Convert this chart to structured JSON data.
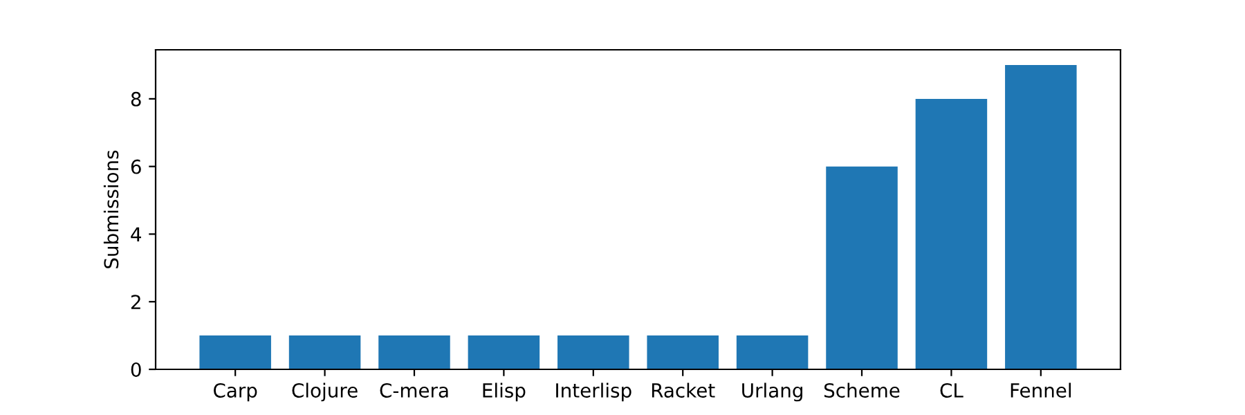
{
  "chart_data": {
    "type": "bar",
    "ylabel": "Submissions",
    "categories": [
      "Carp",
      "Clojure",
      "C-mera",
      "Elisp",
      "Interlisp",
      "Racket",
      "Urlang",
      "Scheme",
      "CL",
      "Fennel"
    ],
    "values": [
      1,
      1,
      1,
      1,
      1,
      1,
      1,
      6,
      8,
      9
    ],
    "color": "#1f77b4",
    "ylim": [
      0,
      9.45
    ],
    "yticks": [
      0,
      2,
      4,
      6,
      8
    ],
    "grid": false
  }
}
